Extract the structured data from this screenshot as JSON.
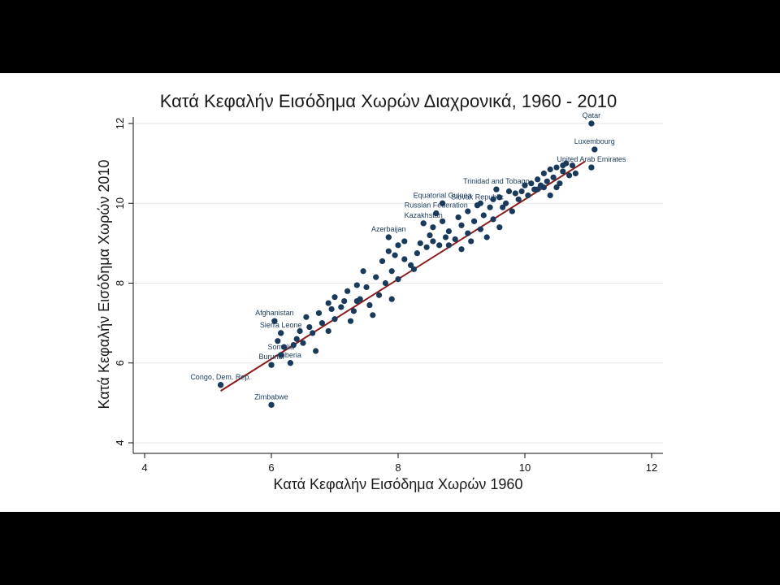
{
  "chart_data": {
    "type": "scatter",
    "title": "Κατά Κεφαλήν Εισόδημα Χωρών Διαχρονικά, 1960 - 2010",
    "xlabel": "Κατά Κεφαλήν Εισόδημα Χωρών 1960",
    "ylabel": "Κατά Κεφαλήν Εισόδημα Χωρών 2010",
    "xlim": [
      4,
      12
    ],
    "ylim": [
      4,
      12
    ],
    "xticks": [
      "4",
      "6",
      "8",
      "10",
      "12"
    ],
    "yticks": [
      "4",
      "6",
      "8",
      "10",
      "12"
    ],
    "grid": "horizontal",
    "colors": {
      "points": "#1a3a5c",
      "fit_line": "#8b1c1c",
      "grid": "#e6e6e6"
    },
    "fit_line": {
      "x": [
        5.2,
        10.95
      ],
      "y": [
        5.3,
        11.05
      ]
    },
    "labeled_points": [
      {
        "label": "Qatar",
        "x": 11.05,
        "y": 12.0
      },
      {
        "label": "Luxembourg",
        "x": 11.1,
        "y": 11.35
      },
      {
        "label": "United Arab Emirates",
        "x": 11.05,
        "y": 10.9
      },
      {
        "label": "Trinidad and Tobago",
        "x": 9.55,
        "y": 10.35
      },
      {
        "label": "Equatorial Guinea",
        "x": 8.7,
        "y": 10.0
      },
      {
        "label": "Slovak Republic",
        "x": 9.25,
        "y": 9.95
      },
      {
        "label": "Russian Federation",
        "x": 8.6,
        "y": 9.75
      },
      {
        "label": "Kazakhstan",
        "x": 8.4,
        "y": 9.5
      },
      {
        "label": "Azerbaijan",
        "x": 7.85,
        "y": 9.15
      },
      {
        "label": "Afghanistan",
        "x": 6.05,
        "y": 7.05
      },
      {
        "label": "Sierra Leone",
        "x": 6.15,
        "y": 6.75
      },
      {
        "label": "Somalia",
        "x": 6.15,
        "y": 6.2
      },
      {
        "label": "Liberia",
        "x": 6.3,
        "y": 6.0
      },
      {
        "label": "Burundi",
        "x": 6.0,
        "y": 5.95
      },
      {
        "label": "Congo, Dem. Rep.",
        "x": 5.2,
        "y": 5.45
      },
      {
        "label": "Zimbabwe",
        "x": 6.0,
        "y": 4.95
      }
    ],
    "points": [
      [
        5.2,
        5.45
      ],
      [
        6.0,
        4.95
      ],
      [
        6.0,
        5.95
      ],
      [
        6.3,
        6.0
      ],
      [
        6.15,
        6.2
      ],
      [
        6.15,
        6.75
      ],
      [
        6.05,
        7.05
      ],
      [
        6.2,
        6.4
      ],
      [
        6.1,
        6.55
      ],
      [
        6.4,
        6.6
      ],
      [
        6.5,
        6.5
      ],
      [
        6.7,
        6.3
      ],
      [
        6.6,
        6.9
      ],
      [
        6.8,
        7.0
      ],
      [
        6.45,
        6.8
      ],
      [
        6.9,
        6.8
      ],
      [
        7.0,
        7.1
      ],
      [
        6.75,
        7.25
      ],
      [
        7.1,
        7.4
      ],
      [
        7.0,
        7.65
      ],
      [
        6.9,
        7.5
      ],
      [
        7.3,
        7.3
      ],
      [
        7.4,
        7.6
      ],
      [
        7.2,
        7.8
      ],
      [
        7.35,
        7.95
      ],
      [
        7.55,
        7.45
      ],
      [
        7.6,
        7.2
      ],
      [
        7.5,
        7.9
      ],
      [
        7.7,
        7.7
      ],
      [
        7.8,
        8.0
      ],
      [
        7.65,
        8.15
      ],
      [
        7.45,
        8.3
      ],
      [
        7.9,
        8.3
      ],
      [
        8.0,
        8.1
      ],
      [
        7.9,
        7.6
      ],
      [
        8.1,
        8.6
      ],
      [
        7.75,
        8.55
      ],
      [
        7.85,
        8.8
      ],
      [
        8.0,
        8.95
      ],
      [
        7.95,
        8.7
      ],
      [
        8.2,
        8.45
      ],
      [
        8.3,
        8.75
      ],
      [
        8.1,
        9.05
      ],
      [
        8.35,
        9.0
      ],
      [
        7.85,
        9.15
      ],
      [
        8.4,
        9.5
      ],
      [
        8.5,
        9.2
      ],
      [
        8.55,
        9.4
      ],
      [
        8.6,
        9.75
      ],
      [
        8.7,
        9.55
      ],
      [
        8.8,
        9.3
      ],
      [
        8.7,
        10.0
      ],
      [
        8.9,
        9.1
      ],
      [
        9.0,
        8.85
      ],
      [
        8.95,
        9.65
      ],
      [
        9.0,
        9.45
      ],
      [
        9.1,
        9.25
      ],
      [
        9.1,
        9.8
      ],
      [
        9.2,
        9.55
      ],
      [
        9.25,
        9.95
      ],
      [
        9.3,
        9.35
      ],
      [
        9.35,
        9.7
      ],
      [
        9.4,
        9.15
      ],
      [
        9.45,
        9.9
      ],
      [
        9.55,
        10.35
      ],
      [
        9.5,
        9.6
      ],
      [
        9.6,
        9.4
      ],
      [
        9.6,
        10.15
      ],
      [
        9.7,
        10.0
      ],
      [
        9.75,
        10.3
      ],
      [
        9.8,
        9.8
      ],
      [
        9.85,
        10.25
      ],
      [
        9.9,
        10.1
      ],
      [
        10.0,
        10.45
      ],
      [
        10.05,
        10.2
      ],
      [
        10.1,
        10.5
      ],
      [
        10.15,
        10.35
      ],
      [
        10.2,
        10.6
      ],
      [
        10.25,
        10.45
      ],
      [
        10.3,
        10.75
      ],
      [
        10.35,
        10.55
      ],
      [
        10.4,
        10.85
      ],
      [
        10.45,
        10.65
      ],
      [
        10.5,
        10.9
      ],
      [
        10.55,
        10.5
      ],
      [
        10.6,
        10.8
      ],
      [
        10.65,
        11.0
      ],
      [
        10.7,
        10.7
      ],
      [
        10.75,
        10.95
      ],
      [
        10.4,
        10.2
      ],
      [
        10.6,
        10.95
      ],
      [
        10.8,
        10.75
      ],
      [
        11.05,
        12.0
      ],
      [
        11.1,
        11.35
      ],
      [
        11.05,
        10.9
      ],
      [
        10.5,
        10.4
      ],
      [
        10.3,
        10.4
      ],
      [
        10.2,
        10.35
      ],
      [
        9.95,
        10.3
      ],
      [
        8.45,
        8.9
      ],
      [
        8.65,
        8.95
      ],
      [
        8.8,
        8.95
      ],
      [
        7.35,
        7.55
      ],
      [
        7.15,
        7.55
      ],
      [
        6.65,
        6.75
      ],
      [
        6.55,
        7.15
      ],
      [
        6.35,
        6.45
      ],
      [
        6.95,
        7.35
      ],
      [
        7.25,
        7.05
      ],
      [
        8.25,
        8.35
      ],
      [
        8.55,
        9.05
      ],
      [
        9.15,
        9.05
      ],
      [
        9.3,
        10.0
      ],
      [
        9.5,
        10.1
      ],
      [
        9.65,
        9.9
      ],
      [
        8.75,
        9.15
      ]
    ]
  }
}
